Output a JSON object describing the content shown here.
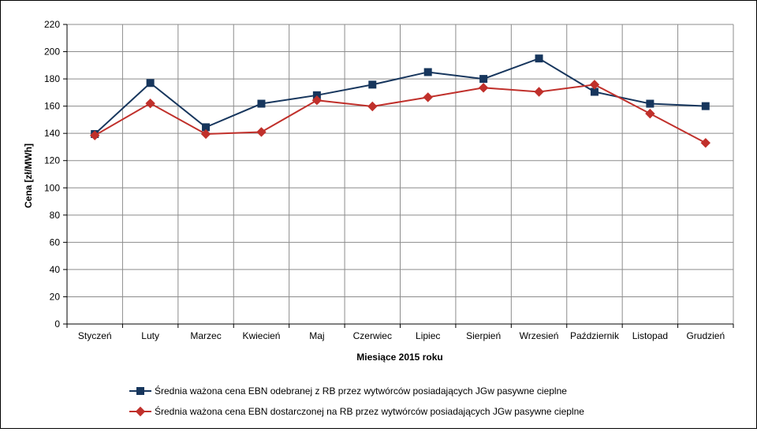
{
  "chart_data": {
    "type": "line",
    "xlabel": "Miesiące 2015  roku",
    "ylabel": "Cena [zł/MWh]",
    "ylim": [
      0,
      220
    ],
    "yticks": [
      0,
      20,
      40,
      60,
      80,
      100,
      120,
      140,
      160,
      180,
      200,
      220
    ],
    "grid": true,
    "legend_position": "bottom",
    "categories": [
      "Styczeń",
      "Luty",
      "Marzec",
      "Kwiecień",
      "Maj",
      "Czerwiec",
      "Lipiec",
      "Sierpień",
      "Wrzesień",
      "Październik",
      "Listopad",
      "Grudzień"
    ],
    "series": [
      {
        "name": "Średnia ważona cena EBN odebranej z RB przez wytwórców posiadających JGw pasywne cieplne",
        "color": "#17365d",
        "marker": "square",
        "values": [
          139.5,
          177,
          144.5,
          161.8,
          168,
          175.8,
          185,
          180,
          195,
          170.5,
          161.8,
          160
        ]
      },
      {
        "name": "Średnia ważona cena EBN dostarczonej na RB przez wytwórców posiadających JGw pasywne cieplne",
        "color": "#c0302b",
        "marker": "diamond",
        "values": [
          138.5,
          162,
          139.5,
          141,
          164.3,
          159.8,
          166.5,
          173.5,
          170.5,
          175.8,
          154.5,
          133
        ]
      }
    ]
  }
}
